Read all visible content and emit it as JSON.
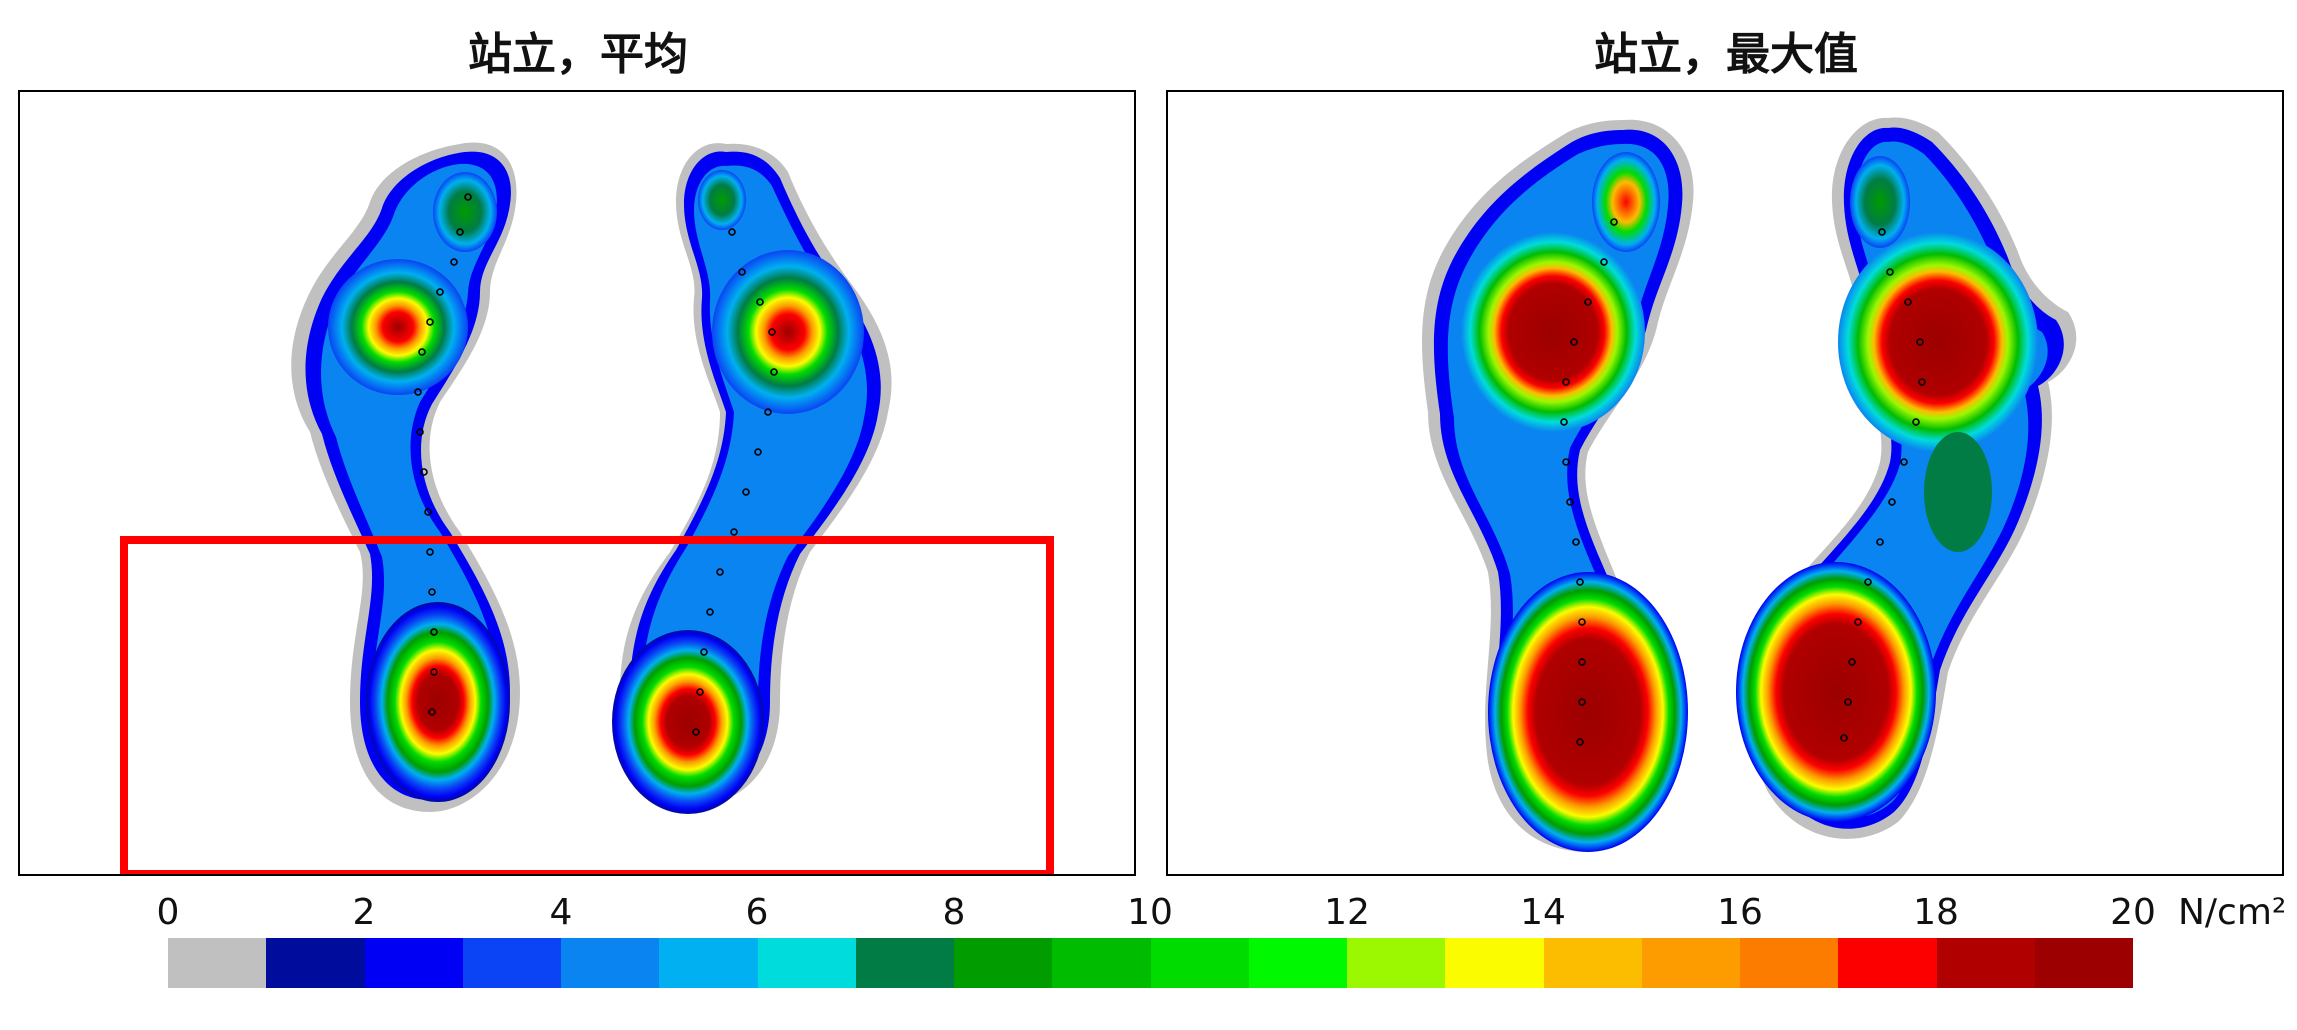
{
  "panels": [
    {
      "title": "站立，平均"
    },
    {
      "title": "站立，最大值"
    }
  ],
  "legend": {
    "ticks": [
      "0",
      "2",
      "4",
      "6",
      "8",
      "10",
      "12",
      "14",
      "16",
      "18",
      "20"
    ],
    "unit": "N/cm²",
    "colors": [
      "#c0c0c0",
      "#000c9c",
      "#0000f4",
      "#0a44f4",
      "#0a84f0",
      "#00b0f0",
      "#00dcdc",
      "#007c44",
      "#009c00",
      "#00bc00",
      "#00dc00",
      "#00f800",
      "#9cf800",
      "#fcfc00",
      "#fcbc00",
      "#fc9c00",
      "#fc7c00",
      "#fc0000",
      "#b00000",
      "#9c0000"
    ]
  },
  "highlight": {
    "color": "#ff0000"
  }
}
